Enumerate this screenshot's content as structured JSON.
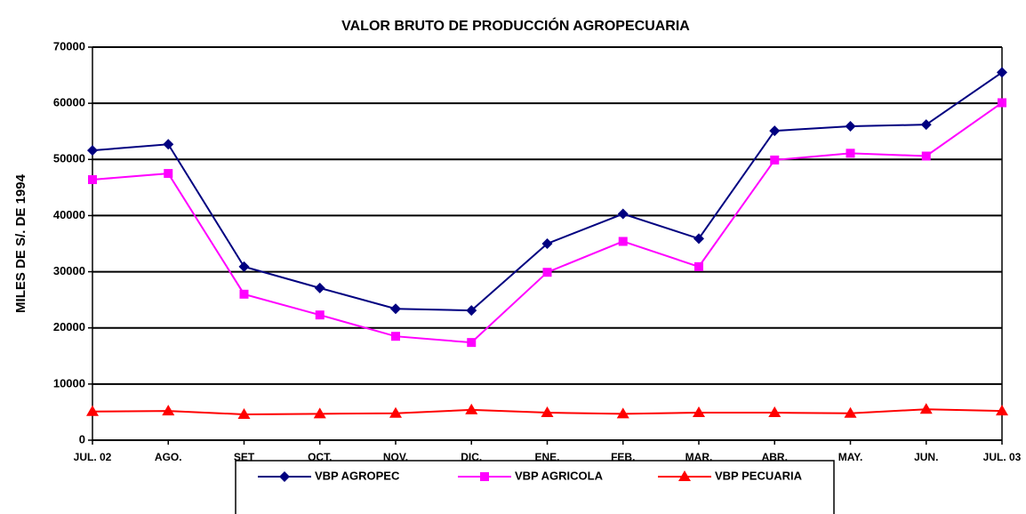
{
  "chart_data": {
    "type": "line",
    "title": "VALOR BRUTO DE PRODUCCIÓN AGROPECUARIA",
    "y_label": "MILES DE S/. DE 1994",
    "categories": [
      "JUL. 02",
      "AGO.",
      "SET",
      "OCT.",
      "NOV.",
      "DIC.",
      "ENE.",
      "FEB.",
      "MAR.",
      "ABR.",
      "MAY.",
      "JUN.",
      "JUL. 03"
    ],
    "series": [
      {
        "name": "VBP AGROPEC",
        "color": "#000080",
        "marker": "diamond",
        "values": [
          51600,
          52700,
          30900,
          27100,
          23400,
          23100,
          35000,
          40300,
          35900,
          55100,
          55900,
          56200,
          65500
        ]
      },
      {
        "name": "VBP AGRICOLA",
        "color": "#ff00ff",
        "marker": "square",
        "values": [
          46400,
          47500,
          26000,
          22300,
          18500,
          17400,
          29900,
          35400,
          30900,
          49900,
          51100,
          50600,
          60100
        ]
      },
      {
        "name": "VBP PECUARIA",
        "color": "#ff0000",
        "marker": "triangle",
        "values": [
          5100,
          5200,
          4600,
          4700,
          4800,
          5400,
          4900,
          4700,
          4900,
          4900,
          4800,
          5500,
          5200
        ]
      }
    ],
    "ylim": [
      0,
      70000
    ],
    "yticks": [
      0,
      10000,
      20000,
      30000,
      40000,
      50000,
      60000,
      70000
    ],
    "grid": true
  }
}
